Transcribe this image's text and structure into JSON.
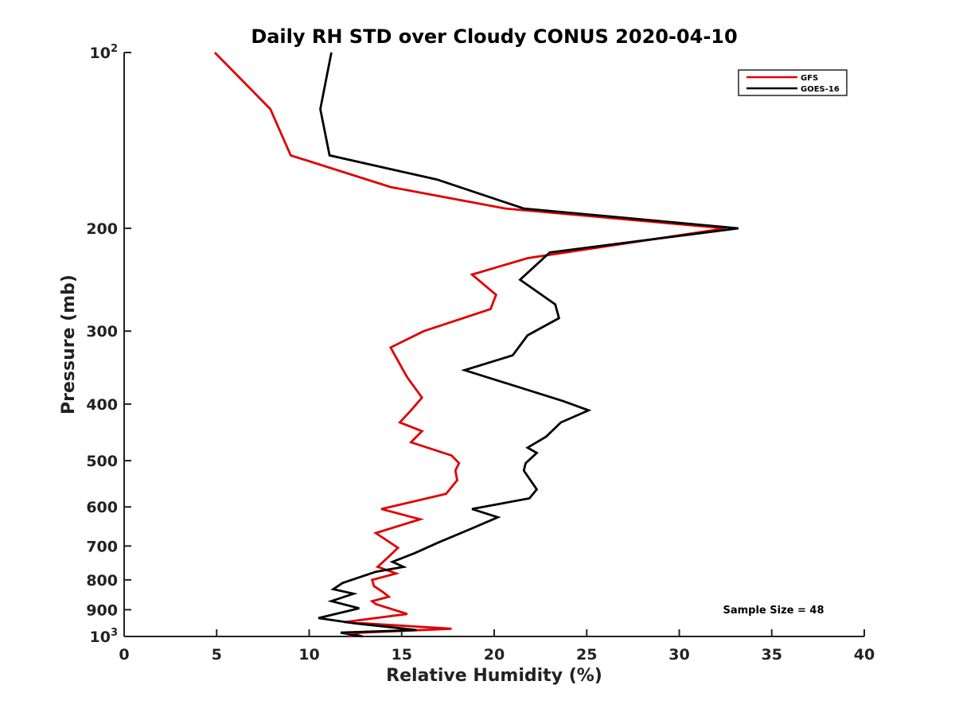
{
  "chart_data": {
    "type": "line",
    "title": "Daily RH STD over Cloudy CONUS 2020-04-10",
    "xlabel": "Relative Humidity (%)",
    "ylabel": "Pressure (mb)",
    "xlim": [
      0,
      40
    ],
    "ylim": [
      100,
      1000
    ],
    "yscale": "log",
    "y_reversed": true,
    "grid": false,
    "legend_placement": "top-right",
    "x_ticks": [
      "0",
      "5",
      "10",
      "15",
      "20",
      "25",
      "30",
      "35",
      "40"
    ],
    "x_tick_values": [
      0,
      5,
      10,
      15,
      20,
      25,
      30,
      35,
      40
    ],
    "y_ticks": [
      {
        "value": 100,
        "base": "10",
        "exp": "2"
      },
      {
        "value": 200,
        "label": "200"
      },
      {
        "value": 300,
        "label": "300"
      },
      {
        "value": 400,
        "label": "400"
      },
      {
        "value": 500,
        "label": "500"
      },
      {
        "value": 600,
        "label": "600"
      },
      {
        "value": 700,
        "label": "700"
      },
      {
        "value": 800,
        "label": "800"
      },
      {
        "value": 900,
        "label": "900"
      },
      {
        "value": 1000,
        "base": "10",
        "exp": "3"
      }
    ],
    "annotation": "Sample Size = 48",
    "series": [
      {
        "name": "GFS",
        "color": "#e00000",
        "points": [
          [
            4.9,
            100
          ],
          [
            7.9,
            125
          ],
          [
            9.0,
            150
          ],
          [
            14.4,
            170
          ],
          [
            20.6,
            185
          ],
          [
            32.5,
            200
          ],
          [
            21.8,
            225
          ],
          [
            18.8,
            240
          ],
          [
            20.1,
            260
          ],
          [
            19.8,
            275
          ],
          [
            16.2,
            300
          ],
          [
            14.4,
            320
          ],
          [
            15.3,
            360
          ],
          [
            16.1,
            390
          ],
          [
            15.5,
            410
          ],
          [
            14.9,
            430
          ],
          [
            16.1,
            445
          ],
          [
            15.5,
            465
          ],
          [
            17.7,
            490
          ],
          [
            18.1,
            505
          ],
          [
            17.9,
            520
          ],
          [
            18.0,
            540
          ],
          [
            17.4,
            570
          ],
          [
            13.9,
            605
          ],
          [
            16.0,
            630
          ],
          [
            13.6,
            665
          ],
          [
            14.8,
            705
          ],
          [
            14.2,
            735
          ],
          [
            13.7,
            760
          ],
          [
            14.7,
            780
          ],
          [
            13.4,
            800
          ],
          [
            13.5,
            820
          ],
          [
            14.0,
            840
          ],
          [
            14.3,
            855
          ],
          [
            13.4,
            870
          ],
          [
            13.6,
            880
          ],
          [
            15.3,
            915
          ],
          [
            11.9,
            945
          ],
          [
            17.7,
            970
          ],
          [
            12.8,
            985
          ],
          [
            12.1,
            1000
          ]
        ]
      },
      {
        "name": "GOES-16",
        "color": "#000000",
        "points": [
          [
            11.2,
            100
          ],
          [
            10.6,
            125
          ],
          [
            11.1,
            150
          ],
          [
            16.9,
            165
          ],
          [
            21.6,
            185
          ],
          [
            33.2,
            200
          ],
          [
            23.0,
            220
          ],
          [
            21.4,
            245
          ],
          [
            23.3,
            270
          ],
          [
            23.5,
            285
          ],
          [
            21.8,
            305
          ],
          [
            21.0,
            330
          ],
          [
            18.4,
            350
          ],
          [
            23.7,
            395
          ],
          [
            25.1,
            410
          ],
          [
            23.6,
            430
          ],
          [
            22.8,
            455
          ],
          [
            21.8,
            475
          ],
          [
            22.3,
            485
          ],
          [
            21.7,
            505
          ],
          [
            21.6,
            520
          ],
          [
            22.3,
            560
          ],
          [
            21.9,
            580
          ],
          [
            18.8,
            605
          ],
          [
            20.2,
            625
          ],
          [
            18.7,
            655
          ],
          [
            17.0,
            690
          ],
          [
            15.7,
            720
          ],
          [
            14.5,
            745
          ],
          [
            15.1,
            760
          ],
          [
            13.6,
            775
          ],
          [
            11.8,
            810
          ],
          [
            11.3,
            830
          ],
          [
            12.4,
            845
          ],
          [
            11.2,
            870
          ],
          [
            12.7,
            895
          ],
          [
            10.5,
            930
          ],
          [
            12.5,
            950
          ],
          [
            15.8,
            975
          ],
          [
            11.7,
            985
          ],
          [
            12.9,
            1000
          ]
        ]
      }
    ]
  }
}
